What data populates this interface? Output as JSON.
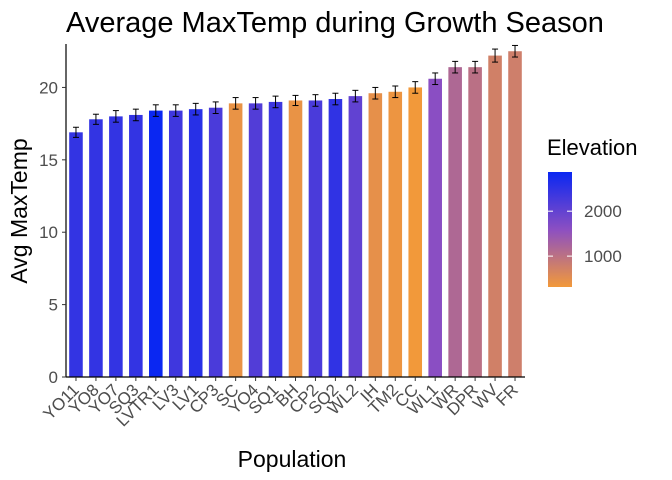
{
  "chart_data": {
    "type": "bar",
    "title": "Average MaxTemp during Growth Season",
    "xlabel": "Population",
    "ylabel": "Avg MaxTemp",
    "ylim": [
      0,
      23
    ],
    "yticks": [
      0,
      5,
      10,
      15,
      20
    ],
    "grid": false,
    "error_bars": true,
    "categories": [
      "YO11",
      "YO8",
      "YO7",
      "SQ3",
      "LVTR1",
      "LV3",
      "LV1",
      "CP3",
      "SC",
      "YO4",
      "SQ1",
      "BH",
      "CP2",
      "SQ2",
      "WL2",
      "IH",
      "TM2",
      "CC",
      "WL1",
      "WR",
      "DPR",
      "WV",
      "FR"
    ],
    "values": [
      16.9,
      17.8,
      18.0,
      18.1,
      18.4,
      18.4,
      18.5,
      18.6,
      18.9,
      18.9,
      19.0,
      19.1,
      19.1,
      19.2,
      19.4,
      19.6,
      19.7,
      20.0,
      20.6,
      21.4,
      21.4,
      22.2,
      22.5
    ],
    "error": [
      0.35,
      0.35,
      0.4,
      0.4,
      0.4,
      0.4,
      0.4,
      0.4,
      0.4,
      0.4,
      0.4,
      0.35,
      0.4,
      0.4,
      0.4,
      0.4,
      0.4,
      0.4,
      0.4,
      0.4,
      0.4,
      0.45,
      0.4
    ],
    "elevation": [
      2470,
      2470,
      2470,
      2470,
      2870,
      2350,
      2590,
      2240,
      420,
      2160,
      2370,
      420,
      2240,
      2500,
      2020,
      460,
      380,
      310,
      1610,
      1160,
      1020,
      740,
      770
    ],
    "color_legend": {
      "title": "Elevation",
      "ticks": [
        2000,
        1000
      ],
      "domain": [
        313,
        2872
      ],
      "low_color": "#f2993a",
      "mid_color": "#8c4fc2",
      "high_color": "#0a27f2"
    }
  }
}
